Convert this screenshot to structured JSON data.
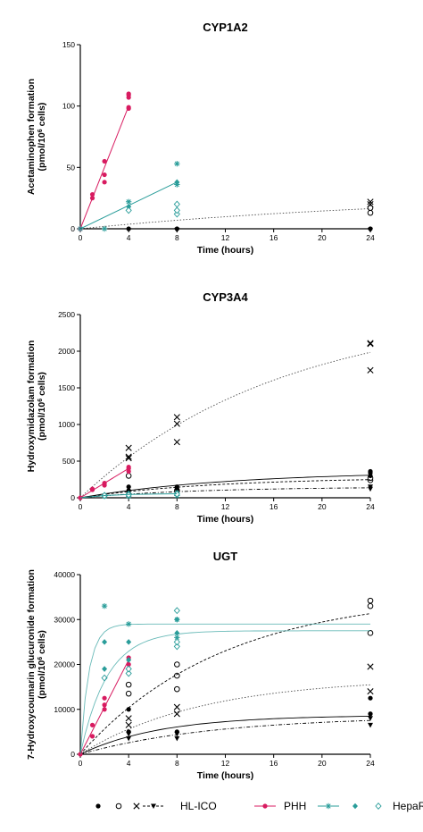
{
  "colors": {
    "hl": "#000000",
    "phh": "#d81b60",
    "heparg": "#2a9d9a"
  },
  "legend": {
    "hl_label": "HL-ICO",
    "phh_label": "PHH",
    "heparg_label": "HepaRG"
  },
  "chart_data": [
    {
      "type": "scatter",
      "title": "CYP1A2",
      "xlabel": "Time (hours)",
      "ylabel": [
        "Acetaminophen formation",
        "(pmol/10^6 cells)"
      ],
      "xlim": [
        0,
        24
      ],
      "xticks": [
        0,
        4,
        8,
        12,
        16,
        20,
        24
      ],
      "ylim": [
        0,
        150
      ],
      "yticks": [
        0,
        50,
        100,
        150
      ],
      "series": [
        {
          "group": "phh",
          "marker": "filled-circle",
          "points": [
            [
              0,
              0
            ],
            [
              1,
              25
            ],
            [
              1,
              28
            ],
            [
              2,
              38
            ],
            [
              2,
              44
            ],
            [
              2,
              55
            ],
            [
              4,
              98
            ],
            [
              4,
              99
            ],
            [
              4,
              107
            ],
            [
              4,
              109
            ],
            [
              4,
              110
            ]
          ]
        },
        {
          "group": "phh",
          "marker": "line",
          "x": [
            0,
            4
          ],
          "y": [
            0,
            100
          ]
        },
        {
          "group": "heparg",
          "marker": "star",
          "points": [
            [
              0,
              0
            ],
            [
              2,
              0
            ],
            [
              4,
              22
            ],
            [
              8,
              36
            ],
            [
              8,
              53
            ]
          ]
        },
        {
          "group": "heparg",
          "marker": "filled-diamond",
          "points": [
            [
              4,
              18
            ],
            [
              8,
              38
            ]
          ]
        },
        {
          "group": "heparg",
          "marker": "open-diamond",
          "points": [
            [
              4,
              15
            ],
            [
              8,
              12
            ],
            [
              8,
              15
            ],
            [
              8,
              20
            ]
          ]
        },
        {
          "group": "heparg",
          "marker": "line",
          "x": [
            0,
            4,
            8
          ],
          "y": [
            0,
            19,
            38
          ]
        },
        {
          "group": "hl",
          "marker": "x",
          "points": [
            [
              24,
              20
            ],
            [
              24,
              22
            ]
          ]
        },
        {
          "group": "hl",
          "marker": "open-circle",
          "points": [
            [
              24,
              13
            ],
            [
              24,
              17
            ]
          ]
        },
        {
          "group": "hl",
          "marker": "filled-circle",
          "points": [
            [
              4,
              0
            ],
            [
              8,
              0
            ],
            [
              24,
              0
            ]
          ]
        },
        {
          "group": "hl",
          "marker": "triangle-down",
          "points": [
            [
              8,
              -1
            ],
            [
              24,
              -1
            ]
          ]
        },
        {
          "group": "hl",
          "marker": "curve-dotted",
          "model": "assoc",
          "ymax": 30,
          "k": 0.033
        }
      ]
    },
    {
      "type": "scatter",
      "title": "CYP3A4",
      "xlabel": "Time (hours)",
      "ylabel": [
        "Hydroxymidazolam formation",
        "(pmol/10^6 cells)"
      ],
      "xlim": [
        0,
        24
      ],
      "xticks": [
        0,
        4,
        8,
        12,
        16,
        20,
        24
      ],
      "ylim": [
        0,
        2500
      ],
      "yticks": [
        0,
        500,
        1000,
        1500,
        2000,
        2500
      ],
      "series": [
        {
          "group": "hl",
          "marker": "x",
          "points": [
            [
              4,
              540
            ],
            [
              4,
              560
            ],
            [
              4,
              680
            ],
            [
              8,
              760
            ],
            [
              8,
              1010
            ],
            [
              8,
              1100
            ],
            [
              24,
              1740
            ],
            [
              24,
              2100
            ],
            [
              24,
              2110
            ]
          ]
        },
        {
          "group": "hl",
          "marker": "curve-dotted",
          "model": "assoc",
          "ymax": 2600,
          "k": 0.06
        },
        {
          "group": "hl",
          "marker": "open-circle",
          "points": [
            [
              4,
              300
            ],
            [
              8,
              100
            ],
            [
              24,
              240
            ],
            [
              24,
              270
            ]
          ]
        },
        {
          "group": "hl",
          "marker": "filled-circle",
          "points": [
            [
              4,
              60
            ],
            [
              4,
              100
            ],
            [
              4,
              150
            ],
            [
              8,
              120
            ],
            [
              8,
              150
            ],
            [
              24,
              300
            ],
            [
              24,
              340
            ],
            [
              24,
              360
            ]
          ]
        },
        {
          "group": "hl",
          "marker": "triangle-down",
          "points": [
            [
              4,
              20
            ],
            [
              8,
              60
            ],
            [
              24,
              120
            ],
            [
              24,
              150
            ]
          ]
        },
        {
          "group": "hl",
          "marker": "curve-solid",
          "model": "assoc",
          "ymax": 360,
          "k": 0.08
        },
        {
          "group": "hl",
          "marker": "curve-dashed",
          "model": "assoc",
          "ymax": 280,
          "k": 0.09
        },
        {
          "group": "hl",
          "marker": "curve-dashdot",
          "model": "assoc",
          "ymax": 150,
          "k": 0.1
        },
        {
          "group": "phh",
          "marker": "filled-circle",
          "points": [
            [
              0,
              0
            ],
            [
              1,
              110
            ],
            [
              1,
              120
            ],
            [
              2,
              170
            ],
            [
              2,
              200
            ],
            [
              4,
              360
            ],
            [
              4,
              400
            ],
            [
              4,
              420
            ]
          ]
        },
        {
          "group": "phh",
          "marker": "line",
          "x": [
            0,
            4
          ],
          "y": [
            0,
            400
          ]
        },
        {
          "group": "heparg",
          "marker": "star",
          "points": [
            [
              2,
              20
            ],
            [
              4,
              20
            ],
            [
              8,
              30
            ]
          ]
        },
        {
          "group": "heparg",
          "marker": "filled-diamond",
          "points": [
            [
              2,
              40
            ],
            [
              4,
              60
            ],
            [
              8,
              70
            ]
          ]
        },
        {
          "group": "heparg",
          "marker": "open-diamond",
          "points": [
            [
              2,
              30
            ],
            [
              4,
              40
            ],
            [
              8,
              50
            ]
          ]
        },
        {
          "group": "heparg",
          "marker": "line",
          "x": [
            0,
            2,
            4,
            8
          ],
          "y": [
            0,
            30,
            45,
            55
          ]
        }
      ]
    },
    {
      "type": "scatter",
      "title": "UGT",
      "xlabel": "Time (hours)",
      "ylabel": [
        "7-Hydroxycoumarin glucuronide formation",
        "(pmol/10^6 cells)"
      ],
      "xlim": [
        0,
        24
      ],
      "xticks": [
        0,
        4,
        8,
        12,
        16,
        20,
        24
      ],
      "ylim": [
        0,
        40000
      ],
      "yticks": [
        0,
        10000,
        20000,
        30000,
        40000
      ],
      "series": [
        {
          "group": "hl",
          "marker": "open-circle",
          "points": [
            [
              4,
              13500
            ],
            [
              4,
              15500
            ],
            [
              8,
              14500
            ],
            [
              8,
              17500
            ],
            [
              8,
              20000
            ],
            [
              24,
              27000
            ],
            [
              24,
              33000
            ],
            [
              24,
              34200
            ]
          ]
        },
        {
          "group": "hl",
          "marker": "curve-dashed",
          "model": "assoc",
          "ymax": 36000,
          "k": 0.085
        },
        {
          "group": "hl",
          "marker": "x",
          "points": [
            [
              4,
              6500
            ],
            [
              4,
              8000
            ],
            [
              8,
              9000
            ],
            [
              8,
              10500
            ],
            [
              24,
              14000
            ],
            [
              24,
              19500
            ]
          ]
        },
        {
          "group": "hl",
          "marker": "curve-dotted",
          "model": "assoc",
          "ymax": 17000,
          "k": 0.1
        },
        {
          "group": "hl",
          "marker": "filled-circle",
          "points": [
            [
              4,
              5000
            ],
            [
              4,
              10000
            ],
            [
              8,
              5000
            ],
            [
              24,
              12500
            ],
            [
              24,
              9000
            ]
          ]
        },
        {
          "group": "hl",
          "marker": "curve-solid",
          "model": "assoc",
          "ymax": 8700,
          "k": 0.15
        },
        {
          "group": "hl",
          "marker": "triangle-down",
          "points": [
            [
              4,
              3500
            ],
            [
              4,
              4500
            ],
            [
              8,
              3500
            ],
            [
              8,
              4500
            ],
            [
              24,
              6500
            ],
            [
              24,
              8000
            ]
          ]
        },
        {
          "group": "hl",
          "marker": "curve-dashdot",
          "model": "assoc",
          "ymax": 8500,
          "k": 0.09
        },
        {
          "group": "phh",
          "marker": "filled-circle",
          "points": [
            [
              0,
              0
            ],
            [
              1,
              4000
            ],
            [
              1,
              6500
            ],
            [
              2,
              10000
            ],
            [
              2,
              11000
            ],
            [
              2,
              12500
            ],
            [
              4,
              18000
            ],
            [
              4,
              20000
            ],
            [
              4,
              21500
            ]
          ]
        },
        {
          "group": "phh",
          "marker": "line",
          "x": [
            0,
            4
          ],
          "y": [
            0,
            21000
          ]
        },
        {
          "group": "heparg",
          "marker": "star",
          "points": [
            [
              2,
              33000
            ],
            [
              4,
              29000
            ],
            [
              8,
              30000
            ],
            [
              8,
              26000
            ]
          ]
        },
        {
          "group": "heparg",
          "marker": "filled-diamond",
          "points": [
            [
              2,
              19000
            ],
            [
              2,
              25000
            ],
            [
              4,
              21000
            ],
            [
              4,
              25000
            ],
            [
              8,
              27000
            ],
            [
              8,
              30000
            ]
          ]
        },
        {
          "group": "heparg",
          "marker": "open-diamond",
          "points": [
            [
              2,
              17000
            ],
            [
              4,
              18000
            ],
            [
              4,
              19000
            ],
            [
              8,
              24000
            ],
            [
              8,
              25000
            ],
            [
              8,
              32000
            ]
          ]
        },
        {
          "group": "heparg",
          "marker": "curve-solid",
          "model": "assoc",
          "ymax": 29000,
          "k": 1.4
        },
        {
          "group": "heparg",
          "marker": "curve-solid",
          "model": "assoc",
          "ymax": 27500,
          "k": 0.45
        }
      ]
    }
  ]
}
